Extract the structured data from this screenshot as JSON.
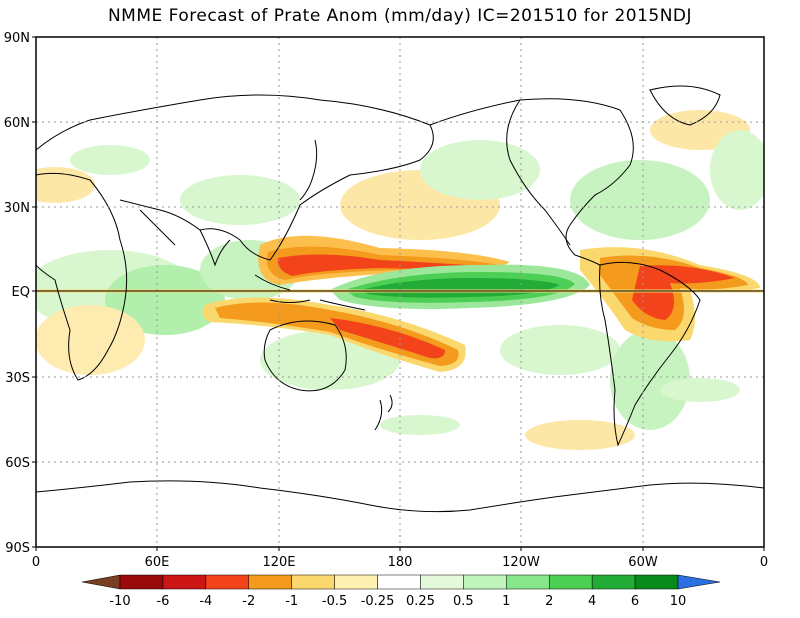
{
  "title": "NMME Forecast of Prate Anom (mm/day) IC=201510 for 2015NDJ",
  "map": {
    "lat_labels": [
      "90N",
      "60N",
      "30N",
      "EQ",
      "30S",
      "60S",
      "90S"
    ],
    "lon_labels": [
      "0",
      "60E",
      "120E",
      "180",
      "120W",
      "60W",
      "0"
    ]
  },
  "colorbar": {
    "labels": [
      "-10",
      "-6",
      "-4",
      "-2",
      "-1",
      "-0.5",
      "-0.25",
      "0.25",
      "0.5",
      "1",
      "2",
      "4",
      "6",
      "10"
    ],
    "colors": [
      "#7a3f22",
      "#9b0a0a",
      "#cc1515",
      "#f2431a",
      "#f49a1c",
      "#fbd86e",
      "#fdf0b0",
      "#ffffff",
      "#e4f9da",
      "#bff5ba",
      "#88e68a",
      "#4ccf54",
      "#22ac37",
      "#088a1a",
      "#2b6fe0"
    ]
  }
}
